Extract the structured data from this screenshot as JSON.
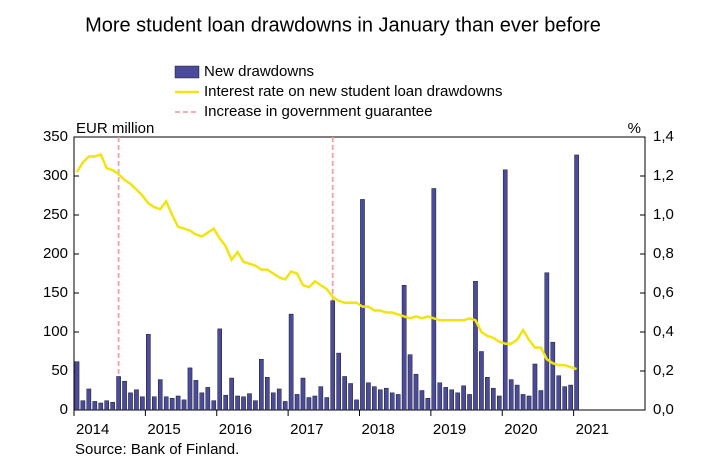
{
  "chart_data": {
    "type": "bar-line",
    "title": "More student loan drawdowns in January than ever before",
    "y_label": "EUR million",
    "y2_label": "%",
    "source": "Source: Bank of Finland.",
    "categories": [
      "2014",
      null,
      null,
      null,
      null,
      null,
      null,
      null,
      null,
      null,
      null,
      null,
      "2015",
      null,
      null,
      null,
      null,
      null,
      null,
      null,
      null,
      null,
      null,
      null,
      "2016",
      null,
      null,
      null,
      null,
      null,
      null,
      null,
      null,
      null,
      null,
      null,
      "2017",
      null,
      null,
      null,
      null,
      null,
      null,
      null,
      null,
      null,
      null,
      null,
      "2018",
      null,
      null,
      null,
      null,
      null,
      null,
      null,
      null,
      null,
      null,
      null,
      "2019",
      null,
      null,
      null,
      null,
      null,
      null,
      null,
      null,
      null,
      null,
      null,
      "2020",
      null,
      null,
      null,
      null,
      null,
      null,
      null,
      null,
      null,
      null,
      null,
      "2021",
      null,
      null,
      null,
      null,
      null,
      null,
      null,
      null,
      null,
      null,
      null
    ],
    "series": [
      {
        "name": "New drawdowns",
        "kind": "bar",
        "color": "#4b4b9b",
        "values": [
          62,
          12,
          27,
          11,
          9,
          12,
          10,
          43,
          37,
          22,
          26,
          17,
          97,
          17,
          39,
          17,
          15,
          18,
          13,
          54,
          38,
          22,
          29,
          12,
          104,
          19,
          41,
          18,
          17,
          21,
          12,
          65,
          42,
          22,
          27,
          11,
          123,
          20,
          41,
          16,
          18,
          30,
          16,
          140,
          73,
          43,
          34,
          13,
          270,
          35,
          30,
          26,
          28,
          22,
          20,
          160,
          71,
          46,
          25,
          15,
          284,
          35,
          29,
          26,
          22,
          31,
          20,
          165,
          75,
          42,
          28,
          18,
          308,
          39,
          32,
          20,
          18,
          59,
          25,
          176,
          87,
          44,
          30,
          32,
          327,
          null,
          null,
          null,
          null,
          null,
          null,
          null,
          null,
          null,
          null,
          null
        ]
      },
      {
        "name": "Interest rate on new student loan drawdowns",
        "kind": "line",
        "axis": "y2",
        "color": "#f2e411",
        "values": [
          1.22,
          1.27,
          1.3,
          1.3,
          1.31,
          1.24,
          1.23,
          1.21,
          1.18,
          1.16,
          1.13,
          1.1,
          1.06,
          1.04,
          1.03,
          1.07,
          1.0,
          0.94,
          0.93,
          0.92,
          0.9,
          0.89,
          0.91,
          0.93,
          0.88,
          0.84,
          0.77,
          0.81,
          0.76,
          0.75,
          0.74,
          0.72,
          0.72,
          0.7,
          0.68,
          0.67,
          0.71,
          0.7,
          0.64,
          0.63,
          0.66,
          0.64,
          0.62,
          0.58,
          0.56,
          0.55,
          0.55,
          0.55,
          0.53,
          0.53,
          0.51,
          0.51,
          0.5,
          0.5,
          0.49,
          0.48,
          0.47,
          0.48,
          0.47,
          0.48,
          0.47,
          0.46,
          0.46,
          0.46,
          0.46,
          0.46,
          0.47,
          0.46,
          0.4,
          0.38,
          0.37,
          0.35,
          0.34,
          0.34,
          0.36,
          0.41,
          0.36,
          0.32,
          0.32,
          0.26,
          0.24,
          0.23,
          0.23,
          0.22,
          0.21,
          null,
          null,
          null,
          null,
          null,
          null,
          null,
          null,
          null,
          null,
          null
        ]
      }
    ],
    "reference_lines": {
      "name": "Increase in government guarantee",
      "color": "#f4a0a8",
      "at": [
        7,
        43
      ]
    },
    "ylim": [
      0,
      350
    ],
    "yticks": [
      0,
      50,
      100,
      150,
      200,
      250,
      300,
      350
    ],
    "y2lim": [
      0,
      1.4
    ],
    "y2ticks": [
      {
        "value": 0,
        "label": "0,0"
      },
      {
        "value": 0.2,
        "label": "0,2"
      },
      {
        "value": 0.4,
        "label": "0,4"
      },
      {
        "value": 0.6,
        "label": "0,6"
      },
      {
        "value": 0.8,
        "label": "0,8"
      },
      {
        "value": 1.0,
        "label": "1,0"
      },
      {
        "value": 1.2,
        "label": "1,2"
      },
      {
        "value": 1.4,
        "label": "1,4"
      }
    ],
    "grid": false
  }
}
